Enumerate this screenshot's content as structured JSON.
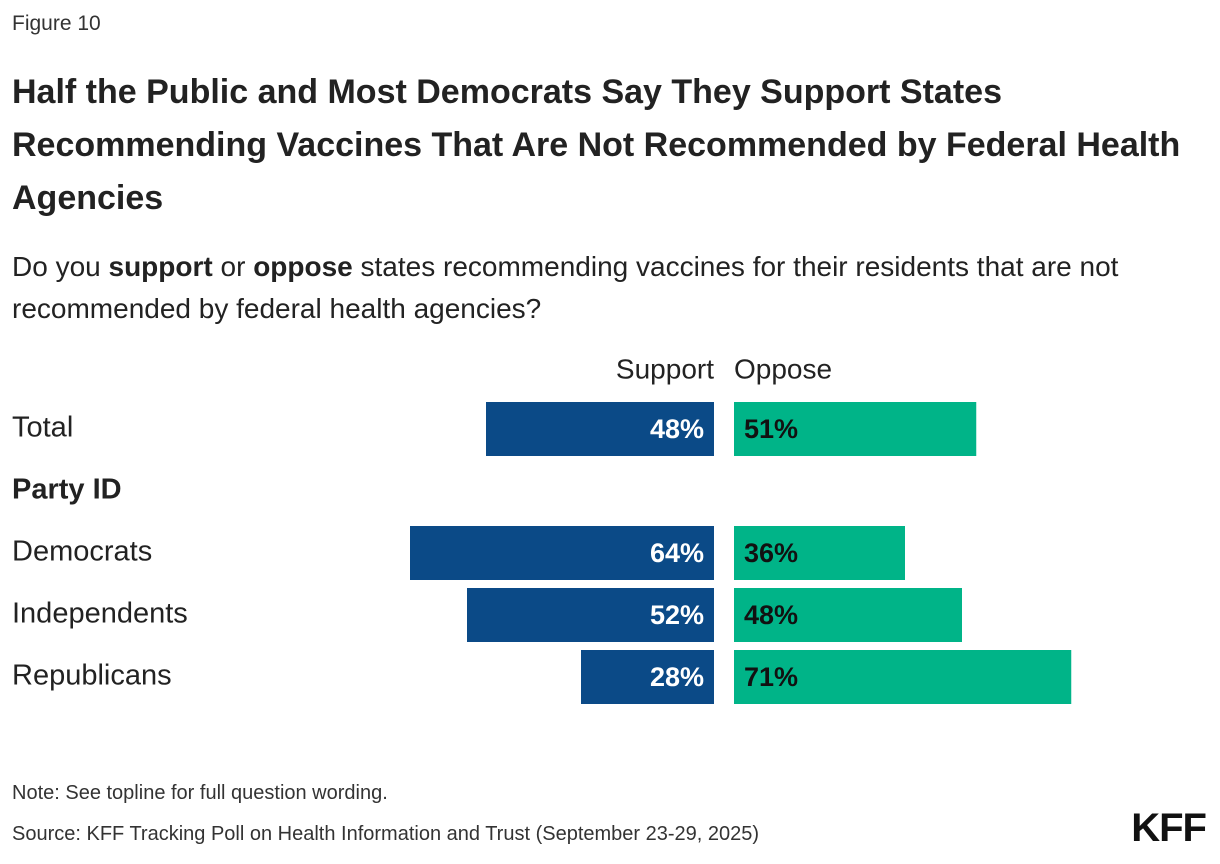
{
  "figure_label": "Figure 10",
  "chart_data": {
    "type": "diverging_bar",
    "title": "Half the Public and Most Democrats Say They Support States Recommending Vaccines That Are Not Recommended by Federal Health Agencies",
    "subtitle": [
      "Do you ",
      "support",
      " or ",
      "oppose",
      " states recommending vaccines for their residents that are not recommended by federal health agencies?"
    ],
    "categories": [
      "Total",
      "Party ID",
      "Democrats",
      "Independents",
      "Republicans"
    ],
    "series": [
      {
        "name": "Support",
        "color": "#0b4a87",
        "values": [
          48,
          null,
          64,
          52,
          28
        ],
        "value_labels": [
          "48%",
          null,
          "64%",
          "52%",
          "28%"
        ]
      },
      {
        "name": "Oppose",
        "color": "#00b488",
        "values": [
          51,
          null,
          36,
          48,
          71
        ],
        "value_labels": [
          "51%",
          null,
          "36%",
          "48%",
          "71%"
        ]
      }
    ],
    "notes": [
      "Note: See topline for full question wording.",
      "Source: KFF Tracking Poll on Health Information and Trust (September 23-29, 2025)"
    ]
  },
  "logo": "KFF"
}
